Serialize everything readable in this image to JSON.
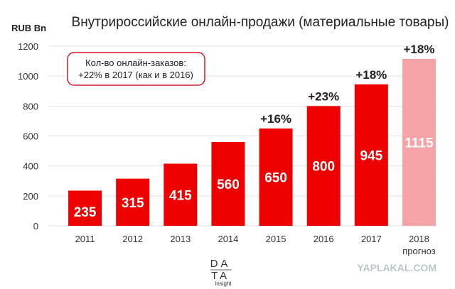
{
  "chart_data": {
    "type": "bar",
    "title": "Внутрироссийские онлайн-продажи (материальные товары)",
    "ylabel": "RUB Bn",
    "ylim": [
      0,
      1200
    ],
    "yticks": [
      "0",
      "200",
      "400",
      "600",
      "800",
      "1000",
      "1200"
    ],
    "categories": [
      "2011",
      "2012",
      "2013",
      "2014",
      "2015",
      "2016",
      "2017",
      "2018"
    ],
    "category_sublabels": [
      "",
      "",
      "",
      "",
      "",
      "",
      "",
      "прогноз"
    ],
    "values": [
      235,
      315,
      415,
      560,
      650,
      800,
      945,
      1115
    ],
    "value_labels": [
      "235",
      "315",
      "415",
      "560",
      "650",
      "800",
      "945",
      "1115"
    ],
    "growth_labels": [
      "",
      "",
      "",
      "",
      "+16%",
      "+23%",
      "+18%",
      "+18%"
    ],
    "colors": {
      "bar": "#ee0000",
      "forecast_bar": "#f5a3a6",
      "forecast_growth": "#a8a8a8",
      "note_border": "#d6192a",
      "grid": "#e2e2e2"
    },
    "grid": true,
    "annotation": {
      "line1": "Кол-во онлайн-заказов:",
      "line2": "+22% в 2017 (как и в 2016)"
    }
  },
  "logo": {
    "line1": "DA",
    "line2": "TA",
    "sub": "insight"
  },
  "watermark": "YAPLAKAL.COM"
}
